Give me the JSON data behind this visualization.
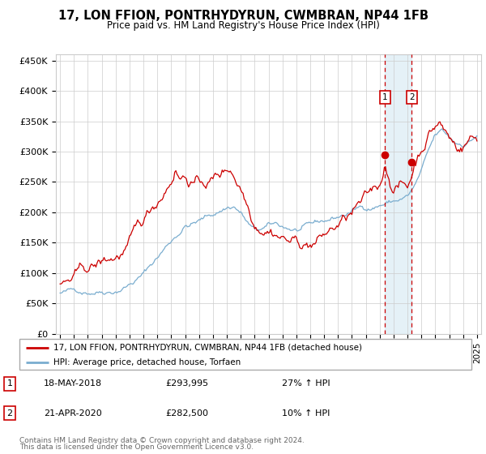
{
  "title": "17, LON FFION, PONTRHYDYRUN, CWMBRAN, NP44 1FB",
  "subtitle": "Price paid vs. HM Land Registry's House Price Index (HPI)",
  "ylabel_ticks": [
    "£0",
    "£50K",
    "£100K",
    "£150K",
    "£200K",
    "£250K",
    "£300K",
    "£350K",
    "£400K",
    "£450K"
  ],
  "ytick_values": [
    0,
    50000,
    100000,
    150000,
    200000,
    250000,
    300000,
    350000,
    400000,
    450000
  ],
  "xlim_start": 1994.7,
  "xlim_end": 2025.3,
  "ylim": [
    0,
    460000
  ],
  "transaction1": {
    "date": 2018.38,
    "price": 293995,
    "label": "1",
    "date_str": "18-MAY-2018",
    "pct": "27% ↑ HPI"
  },
  "transaction2": {
    "date": 2020.31,
    "price": 282500,
    "label": "2",
    "date_str": "21-APR-2020",
    "pct": "10% ↑ HPI"
  },
  "legend_entry1": "17, LON FFION, PONTRHYDYRUN, CWMBRAN, NP44 1FB (detached house)",
  "legend_entry2": "HPI: Average price, detached house, Torfaen",
  "footer1": "Contains HM Land Registry data © Crown copyright and database right 2024.",
  "footer2": "This data is licensed under the Open Government Licence v3.0.",
  "red_color": "#cc0000",
  "blue_color": "#7aadcf",
  "bg_color": "#ffffff",
  "grid_color": "#cccccc",
  "shade_color": "#cce4f0"
}
